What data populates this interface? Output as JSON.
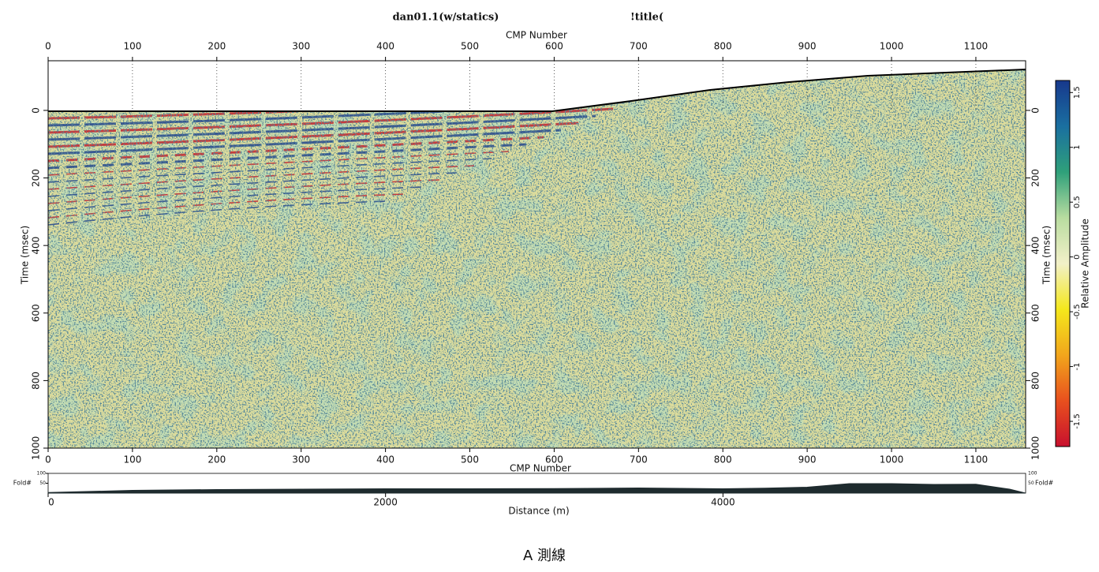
{
  "chart_data": {
    "type": "seismic",
    "title": "dan01.1(w/statics)",
    "subtitle": "!title(",
    "x_label_top": "CMP Number",
    "x_label_bottom": "CMP Number",
    "xlim": [
      0,
      1159
    ],
    "xticks": [
      0,
      100,
      200,
      300,
      400,
      500,
      600,
      700,
      800,
      900,
      1000,
      1100
    ],
    "y_label": "Time (msec)",
    "y2_label": "Time (msec)",
    "ylim": [
      1000,
      -147
    ],
    "yticks": [
      0,
      200,
      400,
      600,
      800,
      1000
    ],
    "colorbar": {
      "label": "Relative Amplitude",
      "lim": [
        -1.73,
        1.61
      ],
      "ticks": [
        -1.5,
        -1,
        -0.5,
        0,
        0.5,
        1,
        1.5
      ],
      "colormap": [
        "#c8102e",
        "#e8501e",
        "#f2a61c",
        "#f4e81c",
        "#f2f0c8",
        "#b8dca0",
        "#2fa07a",
        "#1a6fa0",
        "#17388c"
      ]
    },
    "fold": {
      "label_left": "Fold#",
      "label_right": "Fold#",
      "ylim": [
        0,
        100
      ],
      "yticks": [
        50,
        100
      ],
      "color": "#1e2b2e",
      "x": [
        0,
        100,
        200,
        300,
        400,
        500,
        600,
        700,
        800,
        850,
        900,
        950,
        1000,
        1050,
        1100,
        1140,
        1159
      ],
      "values": [
        3,
        14,
        18,
        20,
        22,
        22,
        23,
        26,
        22,
        25,
        30,
        48,
        48,
        44,
        45,
        20,
        0
      ]
    },
    "distance": {
      "label": "Distance (m)",
      "xlim": [
        0,
        5794
      ],
      "xticks": [
        0,
        2000,
        4000
      ]
    },
    "caption": "A 測線"
  }
}
